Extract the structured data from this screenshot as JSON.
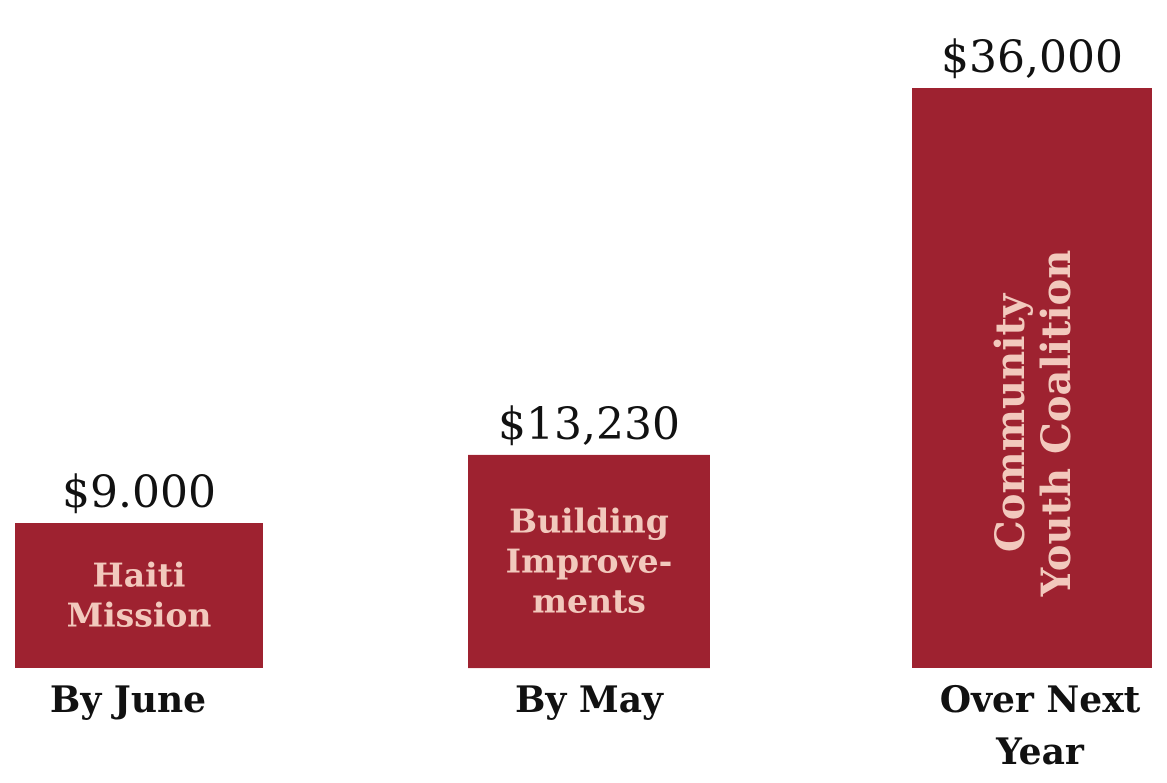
{
  "chart_data": {
    "type": "bar",
    "categories": [
      "By June",
      "By May",
      "Over Next Year"
    ],
    "values": [
      9000,
      13230,
      36000
    ],
    "value_labels": [
      "$9.000",
      "$13,230",
      "$36,000"
    ],
    "bar_labels": [
      "Haiti Mission",
      "Building Improve-ments",
      "Community Youth Coalition"
    ],
    "bar_color": "#9e2230",
    "bar_label_color": "#f2c9bd",
    "text_color": "#111111",
    "ylim": [
      0,
      36000
    ]
  }
}
